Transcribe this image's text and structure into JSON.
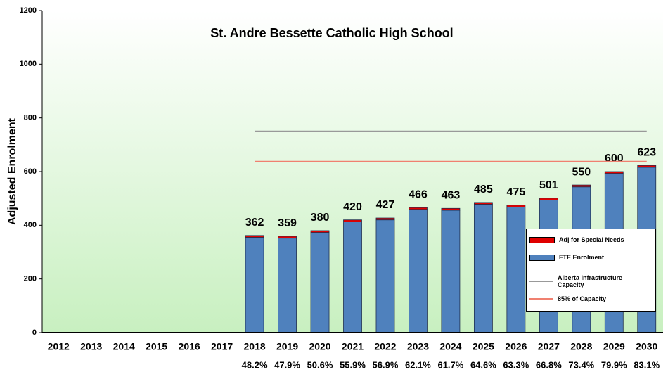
{
  "chart_data": {
    "type": "bar",
    "title": "St. Andre Bessette Catholic High School",
    "y_label": "Adjusted Enrolment",
    "categories": [
      "2012",
      "2013",
      "2014",
      "2015",
      "2016",
      "2017",
      "2018",
      "2019",
      "2020",
      "2021",
      "2022",
      "2023",
      "2024",
      "2025",
      "2026",
      "2027",
      "2028",
      "2029",
      "2030"
    ],
    "series": [
      {
        "name": "Adj for Special Needs",
        "color": "#e00000",
        "kind": "bar",
        "values": [
          null,
          null,
          null,
          null,
          null,
          null,
          7,
          7,
          7,
          7,
          7,
          7,
          7,
          7,
          7,
          7,
          7,
          7,
          7
        ]
      },
      {
        "name": "FTE Enrolment",
        "color": "#4f81bd",
        "kind": "bar",
        "values": [
          null,
          null,
          null,
          null,
          null,
          null,
          355,
          352,
          373,
          413,
          420,
          459,
          456,
          478,
          468,
          494,
          543,
          593,
          616
        ]
      },
      {
        "name": "Alberta Infrastructure Capacity",
        "color": "#999999",
        "kind": "line",
        "values": [
          null,
          null,
          null,
          null,
          null,
          null,
          750,
          750,
          750,
          750,
          750,
          750,
          750,
          750,
          750,
          750,
          750,
          750,
          750
        ]
      },
      {
        "name": "85% of Capacity",
        "color": "#f08070",
        "kind": "line",
        "values": [
          null,
          null,
          null,
          null,
          null,
          null,
          637.5,
          637.5,
          637.5,
          637.5,
          637.5,
          637.5,
          637.5,
          637.5,
          637.5,
          637.5,
          637.5,
          637.5,
          637.5
        ]
      }
    ],
    "totals": [
      null,
      null,
      null,
      null,
      null,
      null,
      362,
      359,
      380,
      420,
      427,
      466,
      463,
      485,
      475,
      501,
      550,
      600,
      623
    ],
    "percent_labels": [
      null,
      null,
      null,
      null,
      null,
      null,
      "48.2%",
      "47.9%",
      "50.6%",
      "55.9%",
      "56.9%",
      "62.1%",
      "61.7%",
      "64.6%",
      "63.3%",
      "66.8%",
      "73.4%",
      "79.9%",
      "83.1%"
    ],
    "ylim": [
      0,
      1200
    ],
    "yticks": [
      0,
      200,
      400,
      600,
      800,
      1000,
      1200
    ]
  }
}
